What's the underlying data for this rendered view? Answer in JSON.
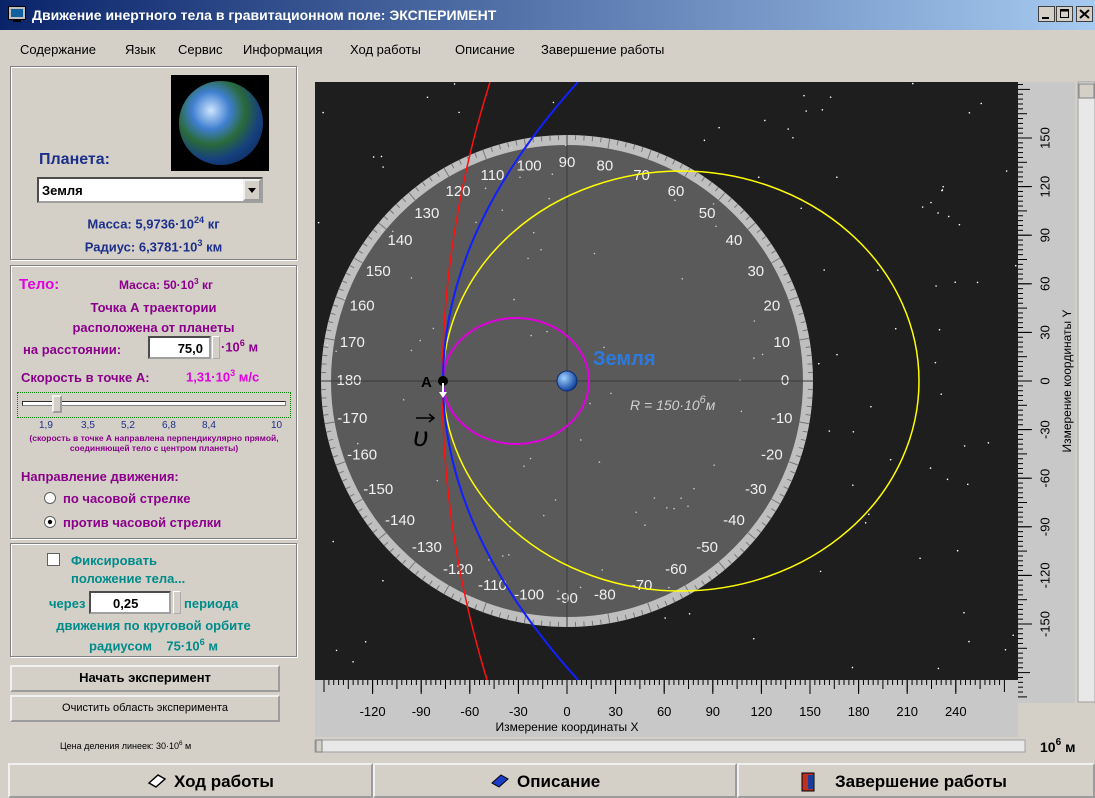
{
  "window": {
    "title": "Движение инертного тела в гравитационном поле: ЭКСПЕРИМЕНТ"
  },
  "menu": [
    "Содержание",
    "Язык",
    "Сервис",
    "Информация",
    "Ход работы",
    "Описание",
    "Завершение работы"
  ],
  "planet_panel": {
    "label": "Планета:",
    "selected": "Земля",
    "mass": {
      "label": "Масса:",
      "base": "5,9736·10",
      "exp": "24",
      "unit": "кг"
    },
    "radius": {
      "label": "Радиус:",
      "base": "6,3781·10",
      "exp": "3",
      "unit": "км"
    }
  },
  "body_panel": {
    "label": "Тело:",
    "mass": {
      "label": "Масса:",
      "base": "50·10",
      "exp": "3",
      "unit": "кг"
    },
    "text_lines": [
      "Точка А траектории",
      "расположена от планеты"
    ],
    "distance": {
      "label": "на расстоянии:",
      "value": "75,0",
      "unit_base": "·10",
      "unit_exp": "6",
      "unit": "м"
    },
    "speed": {
      "label": "Скорость в точке А:",
      "base": "1,31·10",
      "exp": "3",
      "unit": "м/с"
    },
    "slider_ticks": [
      "1,9",
      "3,5",
      "5,2",
      "6,8",
      "8,4",
      "10"
    ],
    "note": "(скорость в точке А направлена перпендикулярно прямой, соединяющей тело с центром планеты)",
    "direction_label": "Направление движения:",
    "directions": [
      "по часовой стрелке",
      "против часовой стрелки"
    ]
  },
  "fix_panel": {
    "checkbox_line1": "Фиксировать",
    "checkbox_line2": "положение тела...",
    "every": "через",
    "value": "0,25",
    "period": "периода",
    "line3": "движения по круговой орбите",
    "radius": {
      "label": "радиусом",
      "base": "75·10",
      "exp": "6",
      "unit": "м"
    }
  },
  "buttons": {
    "start": "Начать эксперимент",
    "clear": "Очистить область эксперимента"
  },
  "scale_note": {
    "label": "Цена деления линеек:",
    "base": "30·10",
    "exp": "6",
    "unit": "м"
  },
  "canvas": {
    "planet_label": "Земля",
    "point_label": "A",
    "velocity_symbol": "υ",
    "circle_label": {
      "base": "R = 150·10",
      "exp": "6",
      "unit": "м"
    },
    "protractor_labels": [
      0,
      10,
      20,
      30,
      40,
      50,
      60,
      70,
      80,
      90,
      100,
      110,
      120,
      130,
      140,
      150,
      160,
      170,
      180,
      -170,
      -160,
      -150,
      -140,
      -130,
      -120,
      -110,
      -100,
      -90,
      -80,
      -70,
      -60,
      -50,
      -40,
      -30,
      -20,
      -10
    ],
    "x_ruler": {
      "title": "Измерение координаты X",
      "ticks": [
        -120,
        -90,
        -60,
        -30,
        0,
        30,
        60,
        90,
        120,
        150,
        180,
        210,
        240
      ]
    },
    "y_ruler": {
      "title": "Измерение координаты Y",
      "ticks": [
        150,
        120,
        90,
        60,
        30,
        0,
        -30,
        -60,
        -90,
        -120,
        -150
      ]
    },
    "units": {
      "base": "10",
      "exp": "6",
      "unit": "м"
    }
  },
  "bottom_bar": [
    "Ход работы",
    "Описание",
    "Завершение работы"
  ]
}
